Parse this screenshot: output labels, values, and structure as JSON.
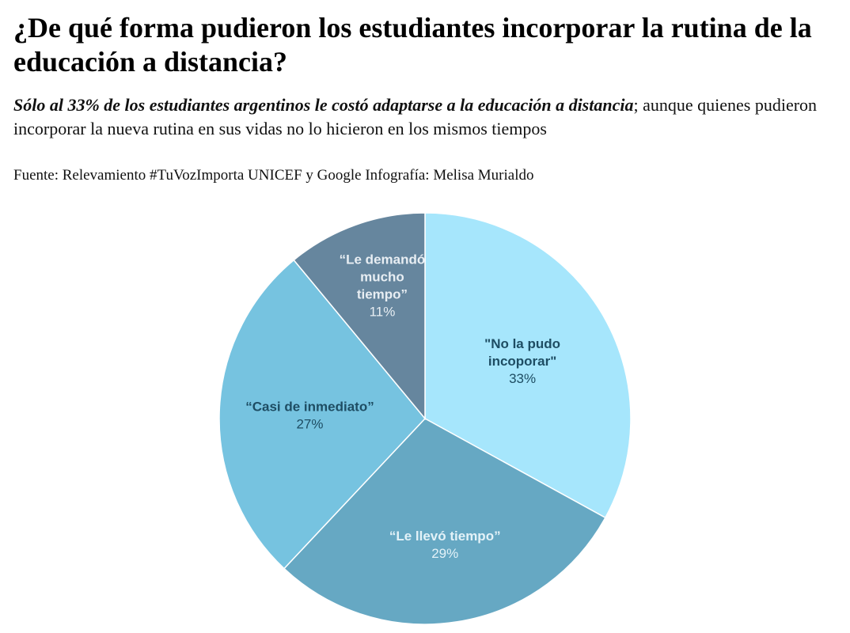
{
  "header": {
    "title": "¿De qué forma pudieron los estudiantes incorporar la rutina de la educación a distancia?",
    "subtitle_emphasis": "Sólo al  33% de los estudiantes argentinos le costó adaptarse a la educación a distancia",
    "subtitle_rest": "; aunque quienes pudieron incorporar la nueva rutina en sus vidas no lo hicieron en los mismos tiempos",
    "source": "Fuente: Relevamiento #TuVozImporta UNICEF y Google Infografía: Melisa Murialdo"
  },
  "chart_data": {
    "type": "pie",
    "start_angle_deg": 0,
    "direction": "clockwise",
    "slices": [
      {
        "label_lines": [
          "\"No la pudo",
          "incoporar\""
        ],
        "value": 33,
        "value_label": "33%",
        "color": "#a6e6fc",
        "text_color": "#1e4d63"
      },
      {
        "label_lines": [
          "“Le llevó tiempo”"
        ],
        "value": 29,
        "value_label": "29%",
        "color": "#66a8c3",
        "text_color": "#e3f2f8"
      },
      {
        "label_lines": [
          "“Casi de inmediato”"
        ],
        "value": 27,
        "value_label": "27%",
        "color": "#76c3e0",
        "text_color": "#1e4d63"
      },
      {
        "label_lines": [
          "“Le demandó",
          "mucho",
          "tiempo”"
        ],
        "value": 11,
        "value_label": "11%",
        "color": "#66869e",
        "text_color": "#e8eef3"
      }
    ]
  }
}
